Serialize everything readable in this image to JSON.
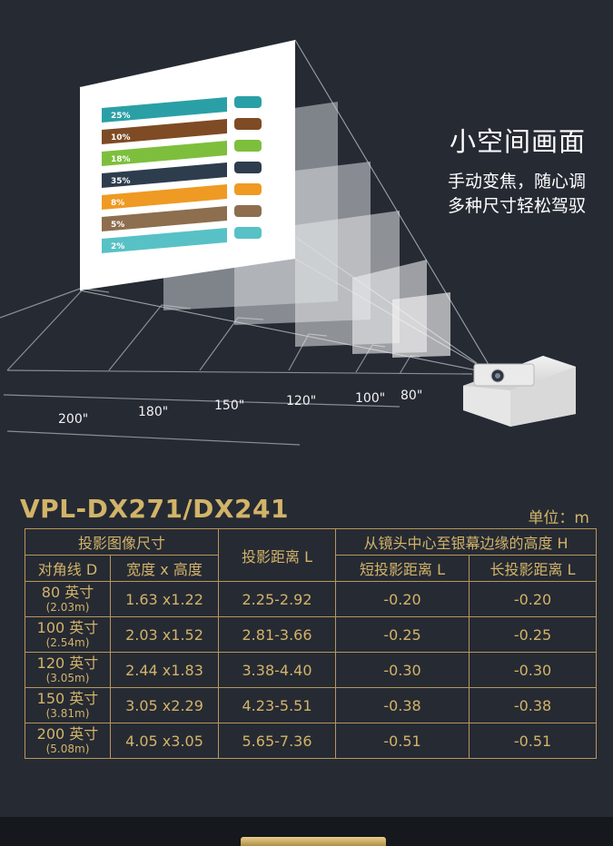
{
  "hero": {
    "title": "小空间画面",
    "line1": "手动变焦，随心调",
    "line2": "多种尺寸轻松驾驭"
  },
  "screen_chart": {
    "bars": [
      {
        "label": "25%",
        "color": "#2aa0a6",
        "icon": "scooter-icon"
      },
      {
        "label": "10%",
        "color": "#7e4b25",
        "icon": "sedan-icon"
      },
      {
        "label": "18%",
        "color": "#7dbf3d",
        "icon": "hatchback-icon"
      },
      {
        "label": "35%",
        "color": "#2e3d4d",
        "icon": "bus-icon"
      },
      {
        "label": "8%",
        "color": "#ef9a23",
        "icon": "truck-icon"
      },
      {
        "label": "5%",
        "color": "#8d6e4e",
        "icon": "train-icon"
      },
      {
        "label": "2%",
        "color": "#58c1c6",
        "icon": "ship-icon"
      }
    ]
  },
  "distance_labels": [
    "200\"",
    "180\"",
    "150\"",
    "120\"",
    "100\"",
    "80\""
  ],
  "spec": {
    "model": "VPL-DX271/DX241",
    "unit": "单位：m",
    "headers": {
      "image_size": "投影图像尺寸",
      "diagonal": "对角线 D",
      "width_height": "宽度 x 高度",
      "throw_distance": "投影距离 L",
      "height_group": "从镜头中心至银幕边缘的高度 H",
      "short": "短投影距离 L",
      "long": "长投影距离 L"
    },
    "rows": [
      {
        "diag": "80 英寸",
        "diag_m": "(2.03m)",
        "wh": "1.63 x1.22",
        "dist": "2.25-2.92",
        "short": "-0.20",
        "long": "-0.20"
      },
      {
        "diag": "100 英寸",
        "diag_m": "(2.54m)",
        "wh": "2.03 x1.52",
        "dist": "2.81-3.66",
        "short": "-0.25",
        "long": "-0.25"
      },
      {
        "diag": "120 英寸",
        "diag_m": "(3.05m)",
        "wh": "2.44 x1.83",
        "dist": "3.38-4.40",
        "short": "-0.30",
        "long": "-0.30"
      },
      {
        "diag": "150 英寸",
        "diag_m": "(3.81m)",
        "wh": "3.05 x2.29",
        "dist": "4.23-5.51",
        "short": "-0.38",
        "long": "-0.38"
      },
      {
        "diag": "200 英寸",
        "diag_m": "(5.08m)",
        "wh": "4.05 x3.05",
        "dist": "5.65-7.36",
        "short": "-0.51",
        "long": "-0.51"
      }
    ]
  },
  "colors": {
    "gold": "#d2b469",
    "background": "#262a33"
  }
}
